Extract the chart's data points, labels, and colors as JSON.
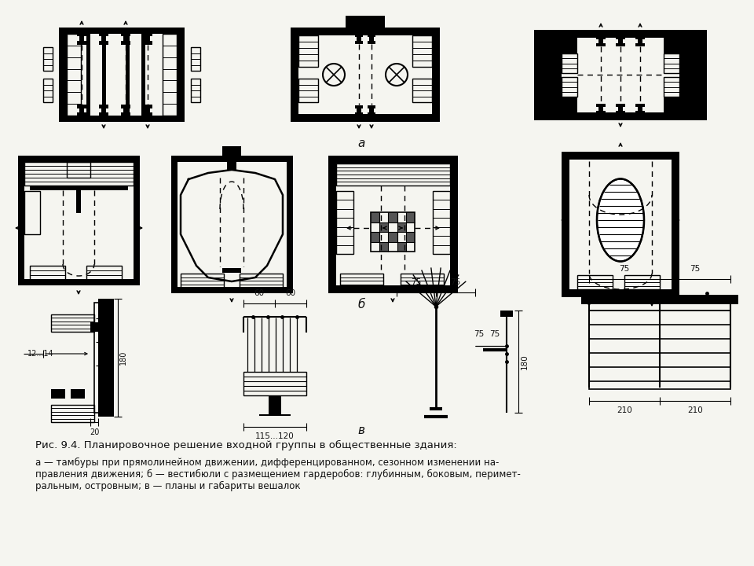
{
  "bg_color": "#f5f5f0",
  "line_color": "#111111",
  "fig_width": 9.6,
  "fig_height": 7.2,
  "caption_title": "Рис. 9.4. Планировочное решение входной группы в общественные здания:",
  "caption_body_line1": "а — тамбуры при прямолинейном движении, дифференцированном, сезонном изменении на-",
  "caption_body_line2": "правления движения; б — вестибюли с размещением гардеробов: глубинным, боковым, перимет-",
  "caption_body_line3": "ральным, островным; в — планы и габариты вешалок",
  "label_a": "а",
  "label_b": "б",
  "label_v": "в"
}
